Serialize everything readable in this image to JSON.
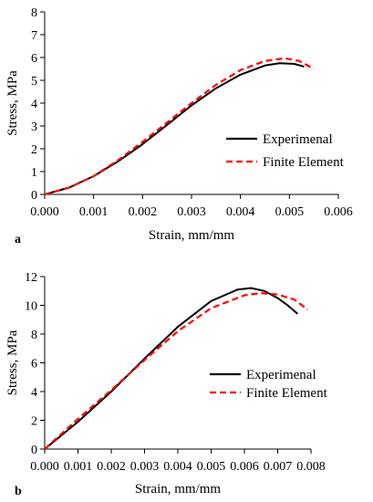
{
  "chart_data": [
    {
      "type": "line",
      "panel_label": "a",
      "xlabel": "Strain, mm/mm",
      "ylabel": "Stress, MPa",
      "xlim": [
        0,
        0.006
      ],
      "ylim": [
        0,
        8
      ],
      "x_ticks": [
        0,
        0.001,
        0.002,
        0.003,
        0.004,
        0.005,
        0.006
      ],
      "x_tick_labels": [
        "0.000",
        "0.001",
        "0.002",
        "0.003",
        "0.004",
        "0.005",
        "0.006"
      ],
      "y_ticks": [
        0,
        1,
        2,
        3,
        4,
        5,
        6,
        7,
        8
      ],
      "y_tick_labels": [
        "0",
        "1",
        "2",
        "3",
        "4",
        "5",
        "6",
        "7",
        "8"
      ],
      "grid": false,
      "legend_position": "center-right",
      "series": [
        {
          "name": "Experimenal",
          "color": "#000000",
          "dash": "solid",
          "x": [
            0,
            0.0005,
            0.001,
            0.0015,
            0.002,
            0.0025,
            0.003,
            0.0035,
            0.004,
            0.0045,
            0.0048,
            0.0051,
            0.0053
          ],
          "y": [
            0,
            0.3,
            0.8,
            1.45,
            2.2,
            3.05,
            3.9,
            4.65,
            5.25,
            5.65,
            5.75,
            5.72,
            5.6
          ]
        },
        {
          "name": "Finite Element",
          "color": "#ff0000",
          "dash": "dashed",
          "x": [
            0,
            0.0005,
            0.001,
            0.0015,
            0.002,
            0.0025,
            0.003,
            0.0035,
            0.004,
            0.0045,
            0.0049,
            0.0052,
            0.0055
          ],
          "y": [
            0,
            0.3,
            0.8,
            1.5,
            2.3,
            3.15,
            4.0,
            4.8,
            5.45,
            5.85,
            5.97,
            5.85,
            5.5
          ]
        }
      ]
    },
    {
      "type": "line",
      "panel_label": "b",
      "xlabel": "Strain, mm/mm",
      "ylabel": "Stress, MPa",
      "xlim": [
        0,
        0.008
      ],
      "ylim": [
        0,
        12
      ],
      "x_ticks": [
        0,
        0.001,
        0.002,
        0.003,
        0.004,
        0.005,
        0.006,
        0.007,
        0.008
      ],
      "x_tick_labels": [
        "0.000",
        "0.001",
        "0.002",
        "0.003",
        "0.004",
        "0.005",
        "0.006",
        "0.007",
        "0.008"
      ],
      "y_ticks": [
        0,
        2,
        4,
        6,
        8,
        10,
        12
      ],
      "y_tick_labels": [
        "0",
        "2",
        "4",
        "6",
        "8",
        "10",
        "12"
      ],
      "grid": false,
      "legend_position": "center-right",
      "series": [
        {
          "name": "Experimenal",
          "color": "#000000",
          "dash": "solid",
          "x": [
            0,
            0.001,
            0.002,
            0.003,
            0.004,
            0.005,
            0.0058,
            0.0062,
            0.0066,
            0.007,
            0.0073,
            0.0076
          ],
          "y": [
            0,
            1.9,
            4.0,
            6.3,
            8.5,
            10.3,
            11.1,
            11.2,
            11.0,
            10.5,
            10.0,
            9.4
          ]
        },
        {
          "name": "Finite Element",
          "color": "#ff0000",
          "dash": "dashed",
          "x": [
            0,
            0.001,
            0.002,
            0.003,
            0.004,
            0.005,
            0.006,
            0.0065,
            0.007,
            0.0075,
            0.0079
          ],
          "y": [
            0,
            2.1,
            4.1,
            6.2,
            8.2,
            9.8,
            10.7,
            10.85,
            10.75,
            10.4,
            9.7
          ]
        }
      ]
    }
  ]
}
